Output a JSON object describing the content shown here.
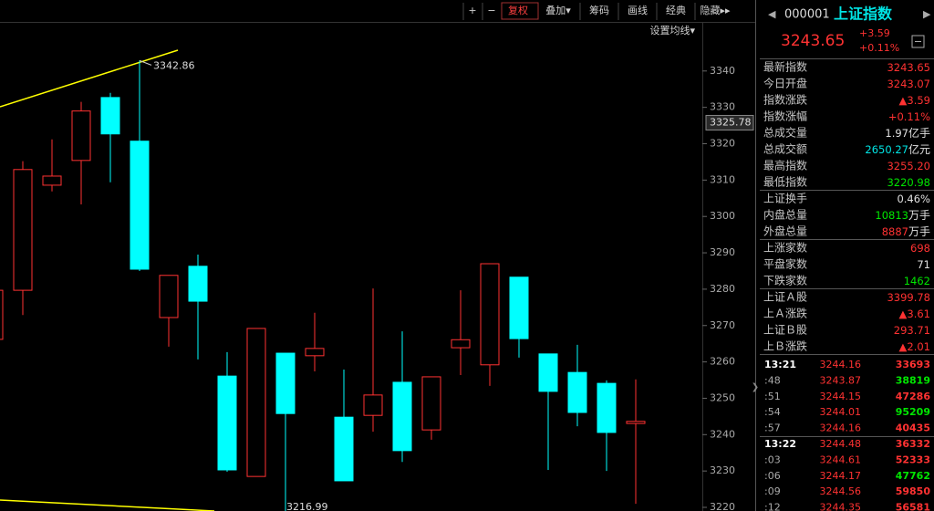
{
  "toolbar": {
    "buttons": [
      "+",
      "−",
      "复权",
      "叠加▾",
      "筹码",
      "画线",
      "经典",
      "隐藏▸▸"
    ],
    "ma_setting": "设置均线▾"
  },
  "chart": {
    "type": "candlestick",
    "ylim": [
      3219,
      3353.5
    ],
    "yticks": [
      3220,
      3230,
      3240,
      3250,
      3260,
      3270,
      3280,
      3290,
      3300,
      3310,
      3320,
      3330,
      3340
    ],
    "cursor_label": 3325.78,
    "up_color": "#ff3232",
    "down_color": "#00ffff",
    "candles": [
      {
        "open": 3266.2,
        "high": 3279.7,
        "low": 3266.2,
        "close": 3279.7
      },
      {
        "open": 3279.7,
        "high": 3315.2,
        "low": 3272.9,
        "close": 3312.9
      },
      {
        "open": 3308.6,
        "high": 3321.2,
        "low": 3306.9,
        "close": 3311.1
      },
      {
        "open": 3315.4,
        "high": 3331.5,
        "low": 3303.3,
        "close": 3329.0
      },
      {
        "open": 3332.7,
        "high": 3334.0,
        "low": 3309.4,
        "close": 3322.7
      },
      {
        "open": 3320.7,
        "high": 3342.86,
        "low": 3285.0,
        "close": 3285.5
      },
      {
        "open": 3272.2,
        "high": 3283.8,
        "low": 3264.2,
        "close": 3283.8
      },
      {
        "open": 3286.3,
        "high": 3289.5,
        "low": 3260.7,
        "close": 3276.7
      },
      {
        "open": 3256.1,
        "high": 3262.7,
        "low": 3229.8,
        "close": 3230.3
      },
      {
        "open": 3228.5,
        "high": 3269.2,
        "low": 3228.5,
        "close": 3269.2
      },
      {
        "open": 3262.4,
        "high": 3262.4,
        "low": 3216.99,
        "close": 3245.8
      },
      {
        "open": 3261.7,
        "high": 3273.5,
        "low": 3257.4,
        "close": 3263.7
      },
      {
        "open": 3244.8,
        "high": 3257.9,
        "low": 3227.3,
        "close": 3227.3
      },
      {
        "open": 3245.3,
        "high": 3280.2,
        "low": 3240.8,
        "close": 3250.9
      },
      {
        "open": 3254.4,
        "high": 3268.4,
        "low": 3232.5,
        "close": 3235.6
      },
      {
        "open": 3241.3,
        "high": 3255.9,
        "low": 3238.6,
        "close": 3255.9
      },
      {
        "open": 3263.9,
        "high": 3279.7,
        "low": 3256.4,
        "close": 3266.1
      },
      {
        "open": 3259.2,
        "high": 3287.0,
        "low": 3253.4,
        "close": 3287.0
      },
      {
        "open": 3283.3,
        "high": 3283.3,
        "low": 3261.2,
        "close": 3266.4
      },
      {
        "open": 3262.2,
        "high": 3262.2,
        "low": 3230.3,
        "close": 3251.9
      },
      {
        "open": 3257.1,
        "high": 3264.7,
        "low": 3242.3,
        "close": 3246.1
      },
      {
        "open": 3254.1,
        "high": 3254.9,
        "low": 3230.0,
        "close": 3240.6
      },
      {
        "open": 3243.07,
        "high": 3255.2,
        "low": 3220.98,
        "close": 3243.65
      }
    ]
  },
  "quote": {
    "code": "000001",
    "name": "上证指数",
    "price": "3243.65",
    "change": "+3.59",
    "change_pct": "+0.11%"
  },
  "stats": [
    [
      {
        "label": "最新指数",
        "value": "3243.65",
        "color": "#ff3232"
      },
      {
        "label": "今日开盘",
        "value": "3243.07",
        "color": "#ff3232"
      },
      {
        "label": "指数涨跌",
        "value": "▲3.59",
        "color": "#ff3232"
      },
      {
        "label": "指数涨幅",
        "value": "+0.11%",
        "color": "#ff3232"
      },
      {
        "label": "总成交量",
        "value": "1.97",
        "unit": "亿手",
        "color": "#e0e0e0"
      },
      {
        "label": "总成交额",
        "value": "2650.27",
        "unit": "亿元",
        "color": "#00e5e5"
      },
      {
        "label": "最高指数",
        "value": "3255.20",
        "color": "#ff3232"
      },
      {
        "label": "最低指数",
        "value": "3220.98",
        "color": "#00e600"
      }
    ],
    [
      {
        "label": "上证换手",
        "value": "0.46%",
        "color": "#e0e0e0"
      },
      {
        "label": "内盘总量",
        "value": "10813",
        "unit": "万手",
        "color": "#00e600"
      },
      {
        "label": "外盘总量",
        "value": "8887",
        "unit": "万手",
        "color": "#ff3232"
      }
    ],
    [
      {
        "label": "上涨家数",
        "value": "698",
        "color": "#ff3232"
      },
      {
        "label": "平盘家数",
        "value": "71",
        "color": "#e0e0e0"
      },
      {
        "label": "下跌家数",
        "value": "1462",
        "color": "#00e600"
      }
    ],
    [
      {
        "label": "上证Ａ股",
        "value": "3399.78",
        "color": "#ff3232"
      },
      {
        "label": "上Ａ涨跌",
        "value": "▲3.61",
        "color": "#ff3232"
      },
      {
        "label": "上证Ｂ股",
        "value": "293.71",
        "color": "#ff3232"
      },
      {
        "label": "上Ｂ涨跌",
        "value": "▲2.01",
        "color": "#ff3232"
      }
    ]
  ],
  "ticks": [
    [
      {
        "time": "13:21",
        "price": "3244.16",
        "volume": "33693",
        "volume_color": "#ff3232"
      },
      {
        "time": ":48",
        "price": "3243.87",
        "volume": "38819",
        "volume_color": "#00e600"
      },
      {
        "time": ":51",
        "price": "3244.15",
        "volume": "47286",
        "volume_color": "#ff3232"
      },
      {
        "time": ":54",
        "price": "3244.01",
        "volume": "95209",
        "volume_color": "#00e600"
      },
      {
        "time": ":57",
        "price": "3244.16",
        "volume": "40435",
        "volume_color": "#ff3232"
      }
    ],
    [
      {
        "time": "13:22",
        "price": "3244.48",
        "volume": "36332",
        "volume_color": "#ff3232"
      },
      {
        "time": ":03",
        "price": "3244.61",
        "volume": "52333",
        "volume_color": "#ff3232"
      },
      {
        "time": ":06",
        "price": "3244.17",
        "volume": "47762",
        "volume_color": "#00e600"
      },
      {
        "time": ":09",
        "price": "3244.56",
        "volume": "59850",
        "volume_color": "#ff3232"
      },
      {
        "time": ":12",
        "price": "3244.35",
        "volume": "56581",
        "volume_color": "#ff3232"
      }
    ]
  ]
}
